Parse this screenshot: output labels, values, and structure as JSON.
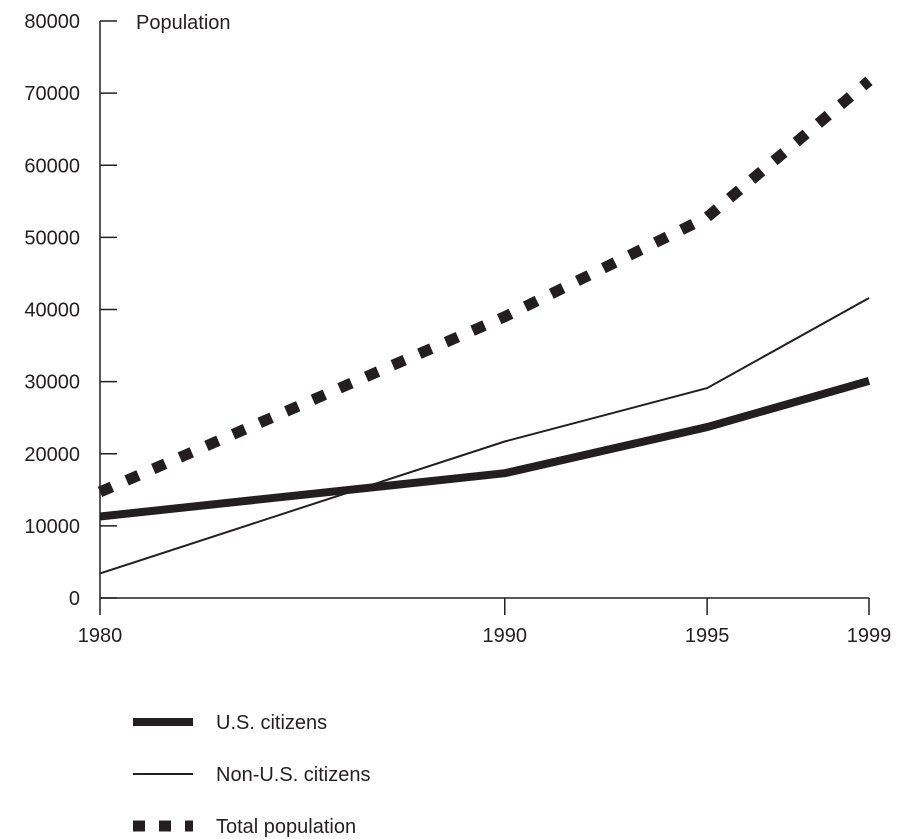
{
  "chart_data": {
    "type": "line",
    "ylabel": "Population",
    "xlabel": "",
    "x": [
      1980,
      1990,
      1995,
      1999
    ],
    "x_ticks": [
      "1980",
      "1990",
      "1995",
      "1999"
    ],
    "y_ticks": [
      "0",
      "10000",
      "20000",
      "30000",
      "40000",
      "50000",
      "60000",
      "70000",
      "80000"
    ],
    "ylim": [
      0,
      80000
    ],
    "grid": false,
    "legend_position": "bottom",
    "series": [
      {
        "name": "U.S. citizens",
        "style": "thick",
        "color": "#231f20",
        "values": [
          11300,
          17300,
          23700,
          30100
        ]
      },
      {
        "name": "Non-U.S. citizens",
        "style": "thin",
        "color": "#231f20",
        "values": [
          3400,
          21700,
          29100,
          41600
        ]
      },
      {
        "name": "Total population",
        "style": "dotted",
        "color": "#231f20",
        "values": [
          14700,
          39000,
          52800,
          71700
        ]
      }
    ]
  }
}
